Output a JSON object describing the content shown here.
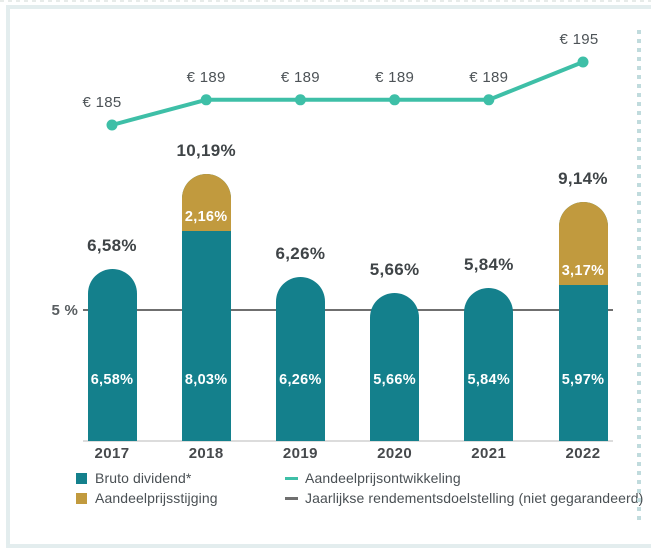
{
  "chart_data": {
    "type": "bar",
    "variant": "stacked-columns-with-line-overlay",
    "categories": [
      "2017",
      "2018",
      "2019",
      "2020",
      "2021",
      "2022"
    ],
    "series": [
      {
        "name": "Bruto dividend*",
        "values": [
          6.58,
          8.03,
          6.26,
          5.66,
          5.84,
          5.97
        ],
        "value_labels": [
          "6,58%",
          "8,03%",
          "6,26%",
          "5,66%",
          "5,84%",
          "5,97%"
        ],
        "color": "#14808C"
      },
      {
        "name": "Aandeelprijsstijging",
        "values": [
          0,
          2.16,
          0,
          0,
          0,
          3.17
        ],
        "value_labels": [
          "",
          "2,16%",
          "",
          "",
          "",
          "3,17%"
        ],
        "color": "#C19A3E"
      }
    ],
    "total_labels": [
      "6,58%",
      "10,19%",
      "6,26%",
      "5,66%",
      "5,84%",
      "9,14%"
    ],
    "line_series": {
      "name": "Aandeelprijsontwikkeling",
      "values": [
        185,
        189,
        189,
        189,
        189,
        195
      ],
      "value_labels": [
        "€ 185",
        "€ 189",
        "€ 189",
        "€ 189",
        "€ 189",
        "€ 195"
      ],
      "color": "#3EBFA7"
    },
    "target_line": {
      "label": "5 %",
      "value": 5,
      "color": "#6F6F6F"
    },
    "ylim": [
      0,
      11
    ],
    "grid": false,
    "legend_position": "bottom"
  },
  "legend": {
    "items": [
      {
        "label": "Bruto dividend*",
        "swatch": "square",
        "color": "#14808C"
      },
      {
        "label": "Aandeelprijsstijging",
        "swatch": "square",
        "color": "#C19A3E"
      },
      {
        "label": "Aandeelprijsontwikkeling",
        "swatch": "dash",
        "color": "#3EBFA7"
      },
      {
        "label": "Jaarlijkse rendementsdoelstelling (niet gegarandeerd)",
        "swatch": "dash",
        "color": "#6F6F6F"
      }
    ]
  },
  "colors": {
    "bar_teal": "#14808C",
    "bar_gold": "#C19A3E",
    "line_teal": "#3EBFA7",
    "target_gray": "#6F6F6F",
    "baseline_gray": "#DCDCDC",
    "panel_border": "#E3EDEE",
    "dotted_divider": "#C0DBDD",
    "text_dark": "#3F4447",
    "text_white": "#FFFFFF"
  }
}
